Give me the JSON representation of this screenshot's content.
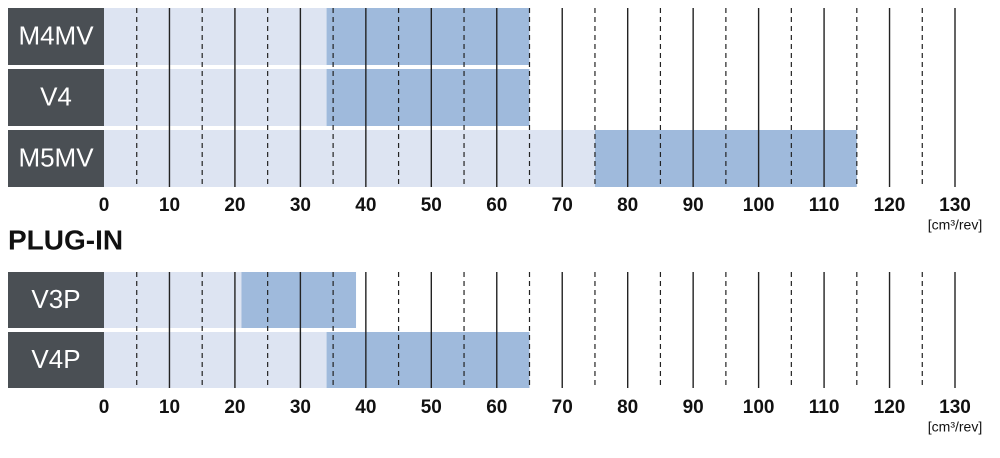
{
  "chart_data": [
    {
      "type": "range-bar",
      "categories": [
        "M4MV",
        "V4",
        "M5MV"
      ],
      "low": [
        34,
        34,
        75
      ],
      "high": [
        65,
        65,
        115
      ],
      "low_color": "#dde4f2",
      "high_color": "#9fbadc",
      "xlim": [
        0,
        130
      ],
      "xticks": [
        0,
        10,
        20,
        30,
        40,
        50,
        60,
        70,
        80,
        90,
        100,
        110,
        120,
        130
      ],
      "xminorticks": [
        5,
        15,
        25,
        35,
        45,
        55,
        65,
        75,
        85,
        95,
        105,
        115,
        125
      ],
      "xlabel": "[cm³/rev]",
      "grid": true
    },
    {
      "type": "range-bar",
      "title": "PLUG-IN",
      "categories": [
        "V3P",
        "V4P"
      ],
      "low": [
        21,
        34
      ],
      "high": [
        38.5,
        65
      ],
      "low_color": "#dde4f2",
      "high_color": "#9fbadc",
      "xlim": [
        0,
        130
      ],
      "xticks": [
        0,
        10,
        20,
        30,
        40,
        50,
        60,
        70,
        80,
        90,
        100,
        110,
        120,
        130
      ],
      "xminorticks": [
        5,
        15,
        25,
        35,
        45,
        55,
        65,
        75,
        85,
        95,
        105,
        115,
        125
      ],
      "xlabel": "[cm³/rev]",
      "grid": true
    }
  ]
}
